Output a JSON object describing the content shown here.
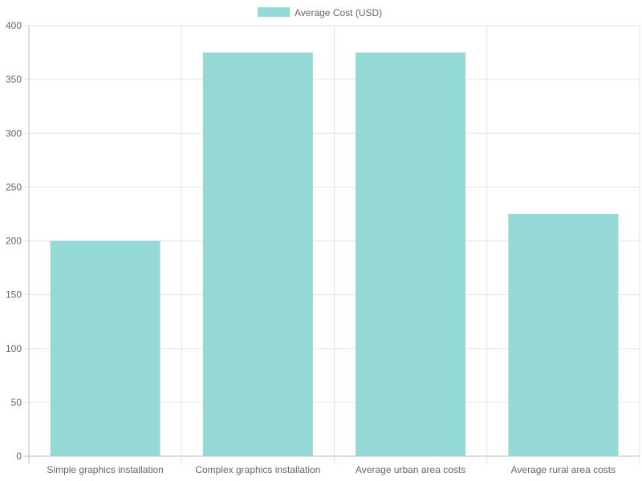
{
  "chart_data": {
    "type": "bar",
    "categories": [
      "Simple graphics installation",
      "Complex graphics installation",
      "Average urban area costs",
      "Average rural area costs"
    ],
    "series": [
      {
        "name": "Average Cost (USD)",
        "values": [
          200,
          375,
          375,
          225
        ],
        "color": "#94d9d6"
      }
    ],
    "y_ticks": [
      "0",
      "50",
      "100",
      "150",
      "200",
      "250",
      "300",
      "350",
      "400"
    ],
    "ylim": [
      0,
      400
    ],
    "grid": true,
    "legend_position": "top"
  }
}
